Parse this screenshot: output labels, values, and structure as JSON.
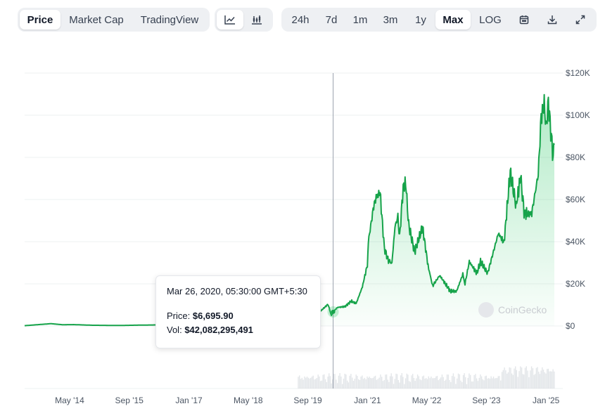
{
  "toolbar": {
    "metric_tabs": [
      {
        "label": "Price",
        "active": true
      },
      {
        "label": "Market Cap",
        "active": false
      },
      {
        "label": "TradingView",
        "active": false
      }
    ],
    "chart_style_icons": [
      "line-chart-icon",
      "candlestick-chart-icon"
    ],
    "range_tabs": [
      {
        "label": "24h",
        "active": false
      },
      {
        "label": "7d",
        "active": false
      },
      {
        "label": "1m",
        "active": false
      },
      {
        "label": "3m",
        "active": false
      },
      {
        "label": "1y",
        "active": false
      },
      {
        "label": "Max",
        "active": true
      },
      {
        "label": "LOG",
        "active": false
      }
    ],
    "action_icons": [
      "calendar-icon",
      "download-icon",
      "expand-icon"
    ]
  },
  "tooltip": {
    "date": "Mar 26, 2020, 05:30:00 GMT+5:30",
    "price_label": "Price:",
    "price_value": "$6,695.90",
    "vol_label": "Vol:",
    "vol_value": "$42,082,295,491"
  },
  "watermark": "CoinGecko",
  "colors": {
    "line": "#16a34a",
    "fill": "#22c55e",
    "volume": "#d1d5db",
    "grid": "#eef0f2",
    "crosshair": "#9ca3af"
  },
  "chart_data": {
    "type": "line",
    "x_tick_labels": [
      "May '14",
      "Sep '15",
      "Jan '17",
      "May '18",
      "Sep '19",
      "Jan '21",
      "May '22",
      "Sep '23",
      "Jan '25"
    ],
    "x_tick_dates": [
      "2014-05-01",
      "2015-09-01",
      "2017-01-01",
      "2018-05-01",
      "2019-09-01",
      "2021-01-01",
      "2022-05-01",
      "2023-09-01",
      "2025-01-01"
    ],
    "y_tick_labels": [
      "$0",
      "$20K",
      "$40K",
      "$60K",
      "$80K",
      "$100K",
      "$120K"
    ],
    "y_ticks": [
      0,
      20000,
      40000,
      60000,
      80000,
      100000,
      120000
    ],
    "ylim": [
      0,
      120000
    ],
    "xlim": [
      "2013-04-28",
      "2025-03-10"
    ],
    "grid": true,
    "highlight": {
      "date": "2020-03-26",
      "price": 6695.9
    },
    "series": [
      {
        "values": [
          [
            "2013-04-28",
            135
          ],
          [
            "2013-11-30",
            1100
          ],
          [
            "2014-03-01",
            600
          ],
          [
            "2014-06-01",
            650
          ],
          [
            "2014-11-01",
            350
          ],
          [
            "2015-06-01",
            230
          ],
          [
            "2016-01-01",
            430
          ],
          [
            "2016-08-01",
            580
          ],
          [
            "2017-01-01",
            950
          ],
          [
            "2017-05-01",
            1500
          ],
          [
            "2017-08-01",
            4000
          ],
          [
            "2017-11-01",
            7000
          ],
          [
            "2017-12-17",
            19500
          ],
          [
            "2018-02-06",
            7000
          ],
          [
            "2018-05-01",
            9000
          ],
          [
            "2018-10-01",
            6500
          ],
          [
            "2018-12-15",
            3300
          ],
          [
            "2019-04-01",
            4100
          ],
          [
            "2019-06-26",
            12900
          ],
          [
            "2019-09-01",
            10000
          ],
          [
            "2019-12-15",
            7100
          ],
          [
            "2020-02-13",
            10300
          ],
          [
            "2020-03-12",
            4900
          ],
          [
            "2020-03-26",
            6695.9
          ],
          [
            "2020-05-01",
            8800
          ],
          [
            "2020-07-01",
            9200
          ],
          [
            "2020-08-20",
            11800
          ],
          [
            "2020-10-01",
            10700
          ],
          [
            "2020-11-20",
            18500
          ],
          [
            "2020-12-31",
            29000
          ],
          [
            "2021-01-08",
            40000
          ],
          [
            "2021-02-21",
            57000
          ],
          [
            "2021-03-13",
            61000
          ],
          [
            "2021-04-14",
            63500
          ],
          [
            "2021-05-19",
            37000
          ],
          [
            "2021-06-22",
            31000
          ],
          [
            "2021-07-20",
            29800
          ],
          [
            "2021-08-14",
            47000
          ],
          [
            "2021-09-07",
            52000
          ],
          [
            "2021-09-21",
            42000
          ],
          [
            "2021-10-20",
            66000
          ],
          [
            "2021-11-10",
            68000
          ],
          [
            "2021-12-04",
            48000
          ],
          [
            "2022-01-22",
            35000
          ],
          [
            "2022-03-28",
            47000
          ],
          [
            "2022-05-12",
            28500
          ],
          [
            "2022-06-18",
            19000
          ],
          [
            "2022-08-15",
            24000
          ],
          [
            "2022-11-10",
            16500
          ],
          [
            "2022-12-31",
            16500
          ],
          [
            "2023-02-20",
            24500
          ],
          [
            "2023-03-10",
            20000
          ],
          [
            "2023-04-14",
            30500
          ],
          [
            "2023-06-15",
            25000
          ],
          [
            "2023-07-15",
            30500
          ],
          [
            "2023-09-11",
            25000
          ],
          [
            "2023-10-25",
            34500
          ],
          [
            "2023-12-08",
            44000
          ],
          [
            "2024-01-23",
            39500
          ],
          [
            "2024-03-14",
            73000
          ],
          [
            "2024-05-01",
            57000
          ],
          [
            "2024-06-07",
            71000
          ],
          [
            "2024-07-05",
            54000
          ],
          [
            "2024-08-05",
            53000
          ],
          [
            "2024-09-06",
            53500
          ],
          [
            "2024-10-29",
            72000
          ],
          [
            "2024-11-22",
            99000
          ],
          [
            "2024-12-17",
            106000
          ],
          [
            "2025-01-01",
            94000
          ],
          [
            "2025-01-20",
            106000
          ],
          [
            "2025-02-28",
            80000
          ],
          [
            "2025-03-10",
            86000
          ]
        ]
      }
    ]
  }
}
